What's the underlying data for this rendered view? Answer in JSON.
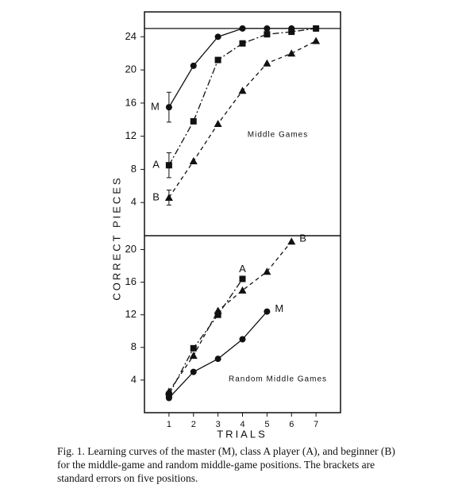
{
  "y_label": "CORRECT PIECES",
  "x_label": "TRIALS",
  "caption": "Fig. 1. Learning curves of the master (M), class A player (A), and beginner (B) for the middle-game and random middle-game positions. The brackets are standard errors on five positions.",
  "chart_data": [
    {
      "type": "line",
      "annotation": "Middle Games",
      "x": [
        1,
        2,
        3,
        4,
        5,
        6,
        7
      ],
      "xlim": [
        0,
        8
      ],
      "ylim": [
        0,
        27
      ],
      "yticks": [
        4,
        8,
        12,
        16,
        20,
        24
      ],
      "reference_line": 25,
      "series": [
        {
          "name": "M",
          "color": "#111",
          "marker": "circle",
          "dash": "solid",
          "values": [
            15.5,
            20.5,
            24,
            25,
            25,
            25,
            25
          ],
          "errors": [
            1.8,
            null,
            null,
            null,
            null,
            null,
            null
          ]
        },
        {
          "name": "A",
          "color": "#111",
          "marker": "square",
          "dash": "dashdot",
          "values": [
            8.5,
            13.8,
            21.2,
            23.2,
            24.3,
            24.6,
            25
          ],
          "errors": [
            1.5,
            null,
            null,
            null,
            null,
            null,
            null
          ]
        },
        {
          "name": "B",
          "color": "#111",
          "marker": "triangle",
          "dash": "dashed",
          "values": [
            4.6,
            9.0,
            13.5,
            17.5,
            20.8,
            22.0,
            23.5
          ],
          "errors": [
            0.9,
            null,
            null,
            null,
            null,
            null,
            null
          ]
        }
      ]
    },
    {
      "type": "line",
      "annotation": "Random Middle Games",
      "x": [
        1,
        2,
        3,
        4,
        5,
        6,
        7
      ],
      "xlim": [
        0,
        8
      ],
      "xticks": [
        1,
        2,
        3,
        4,
        5,
        6,
        7
      ],
      "ylim": [
        0,
        21.7
      ],
      "yticks": [
        4,
        8,
        12,
        16,
        20
      ],
      "series": [
        {
          "name": "M",
          "color": "#111",
          "marker": "circle",
          "dash": "solid",
          "values": [
            1.8,
            5.0,
            6.6,
            9.0,
            12.4,
            null,
            null
          ]
        },
        {
          "name": "A",
          "color": "#111",
          "marker": "square",
          "dash": "dashdot",
          "values": [
            2.2,
            7.9,
            12.0,
            16.4,
            null,
            null,
            null
          ]
        },
        {
          "name": "B",
          "color": "#111",
          "marker": "triangle",
          "dash": "dashed",
          "values": [
            2.6,
            7.0,
            12.5,
            15.0,
            17.3,
            21.0,
            null
          ]
        }
      ]
    }
  ]
}
